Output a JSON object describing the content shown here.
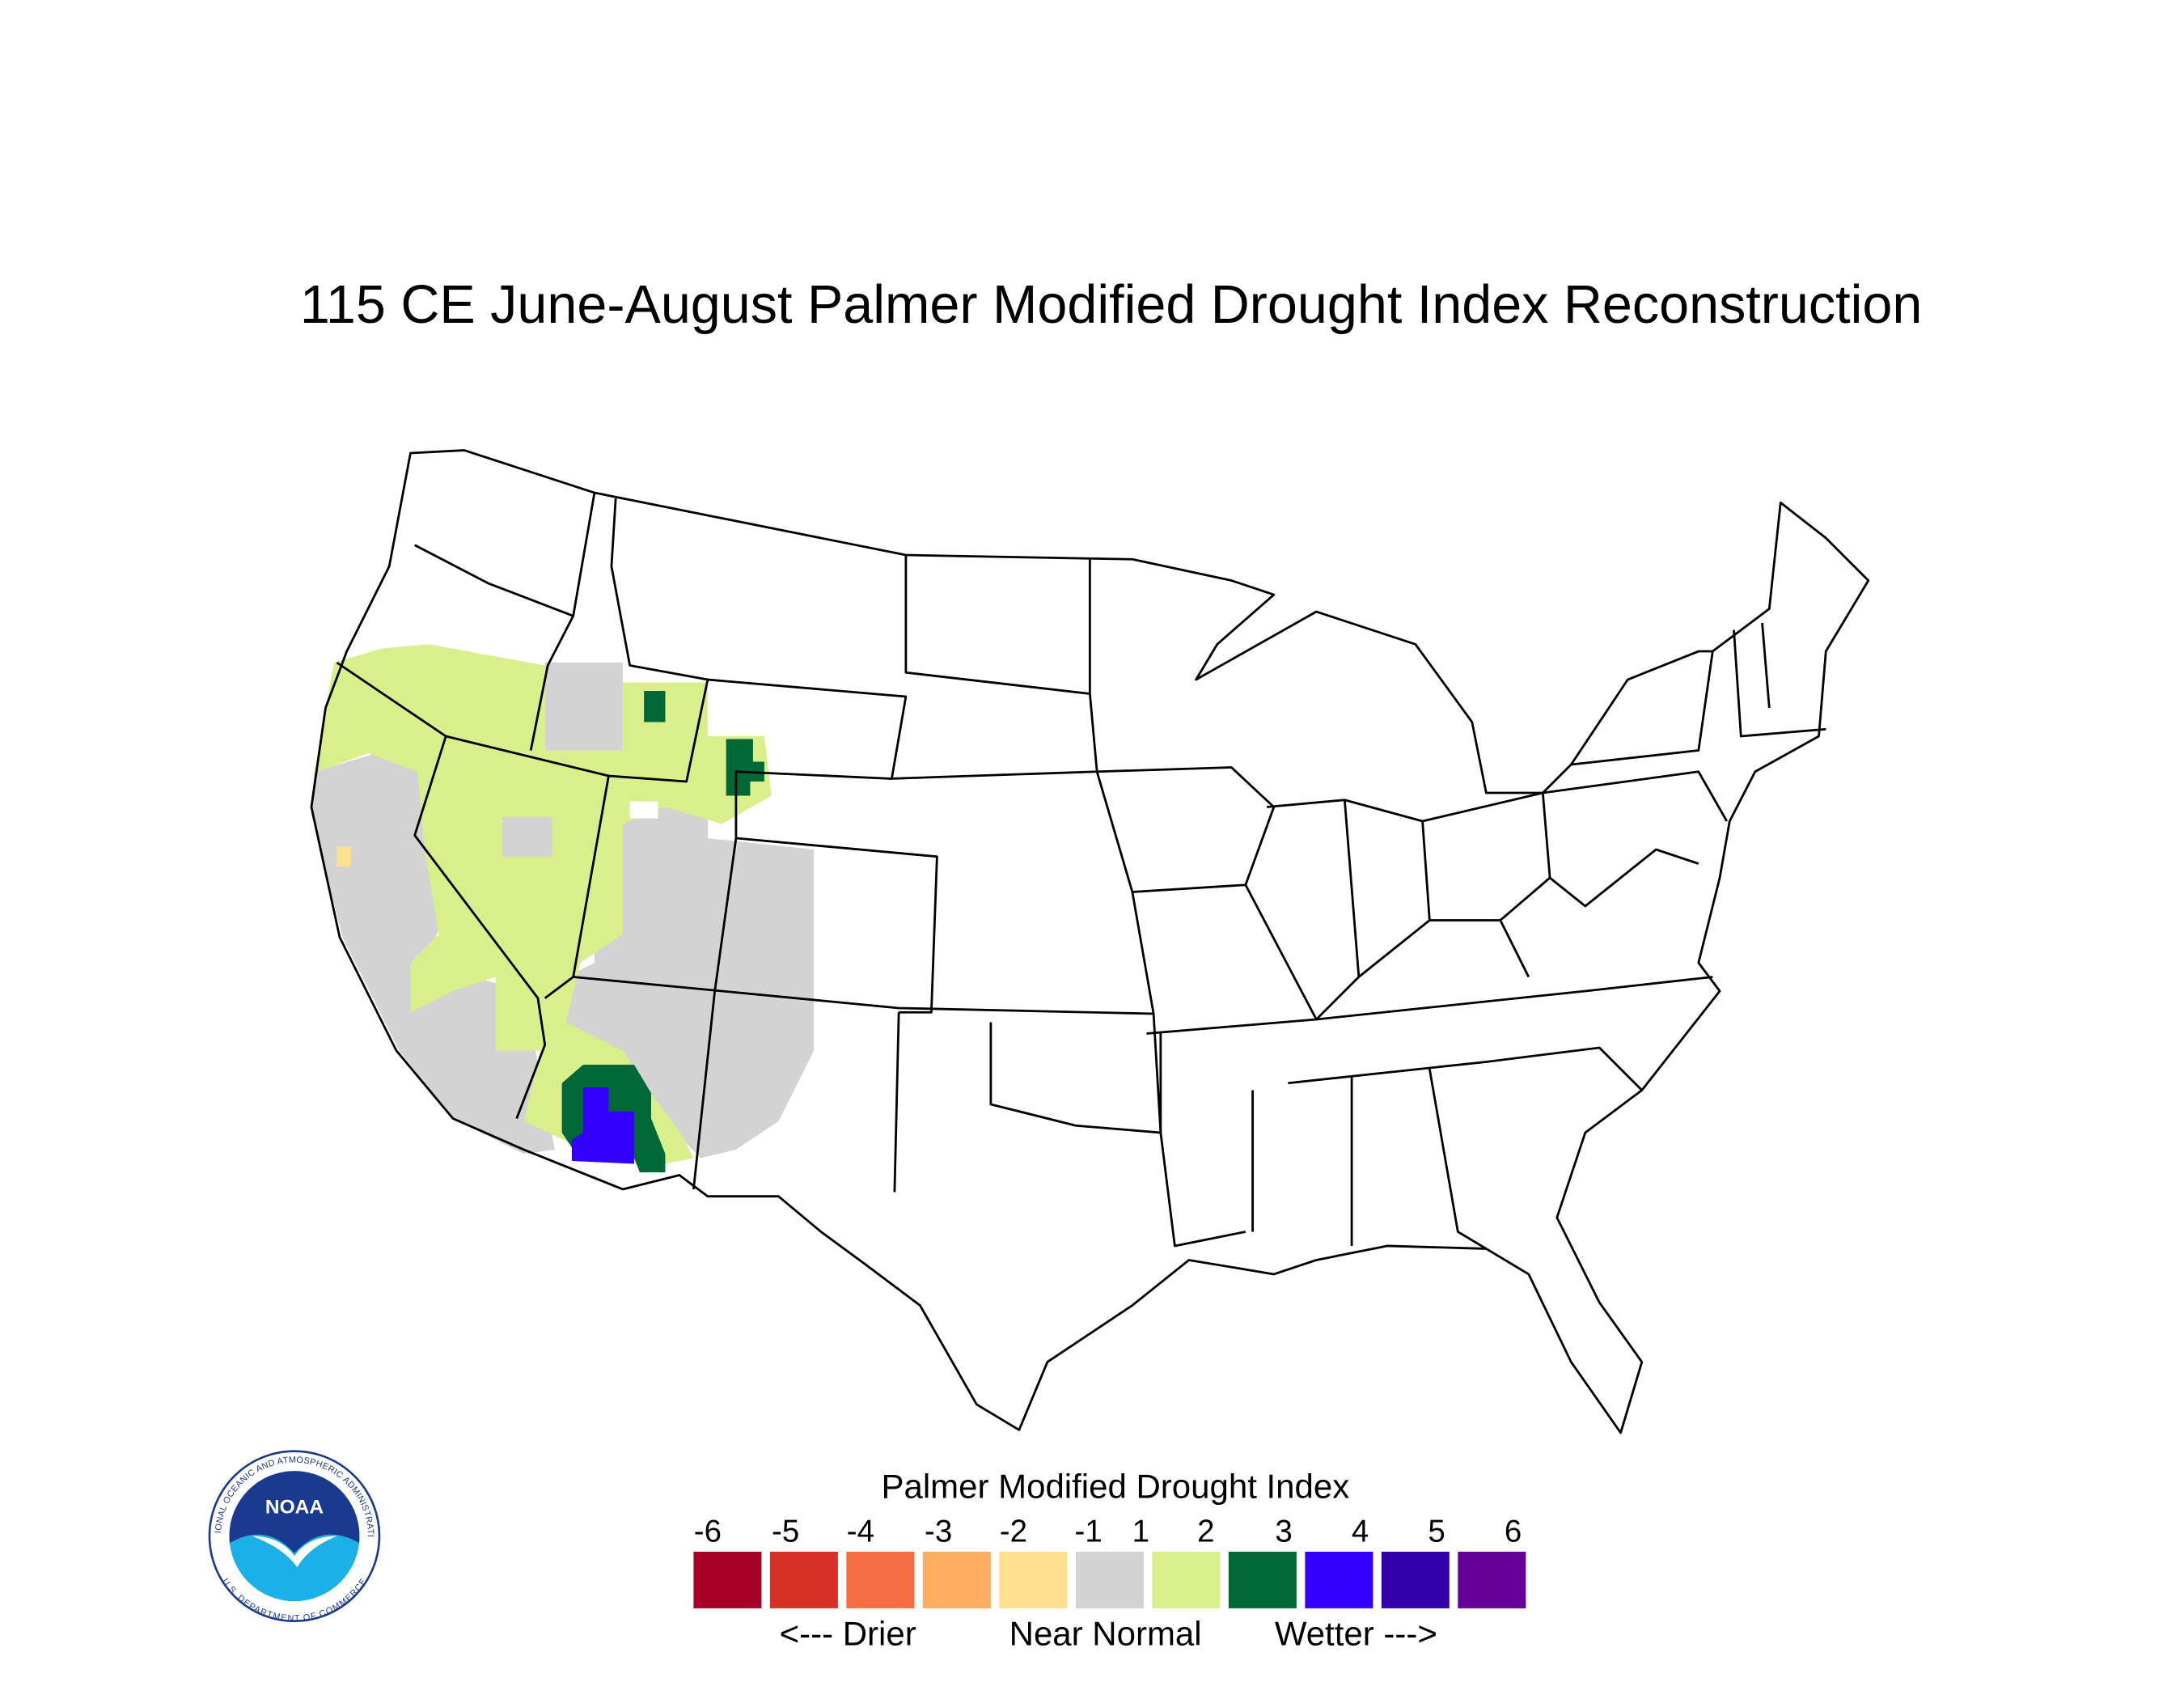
{
  "title": "115 CE  June-August  Palmer Modified Drought Index Reconstruction",
  "legend": {
    "title": "Palmer Modified Drought Index",
    "ticks": [
      -6,
      -5,
      -4,
      -3,
      -2,
      -1,
      1,
      2,
      3,
      4,
      5,
      6
    ],
    "colors": [
      "#a50026",
      "#d73027",
      "#f46d43",
      "#fdae61",
      "#fee090",
      "#d3d3d3",
      "#d9ef8b",
      "#006837",
      "#3300ff",
      "#3300aa",
      "#660099"
    ],
    "captions": [
      "<--- Drier",
      "Near Normal",
      "Wetter --->"
    ]
  },
  "logo": {
    "label": "NOAA",
    "ring_top": "NATIONAL OCEANIC AND ATMOSPHERIC ADMINISTRATION",
    "ring_bottom": "U.S. DEPARTMENT OF COMMERCE"
  }
}
